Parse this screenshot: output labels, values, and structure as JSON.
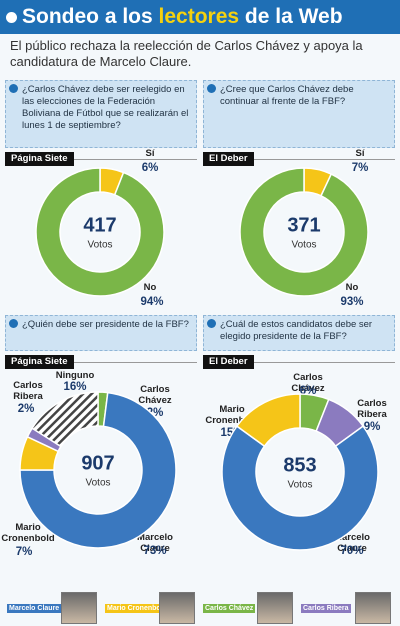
{
  "header": {
    "title_parts": [
      "Sondeo a los ",
      "lectores",
      " de la Web"
    ],
    "subtitle": "El público rechaza la reelección de Carlos Chávez y apoya la candidatura de Marcelo Claure."
  },
  "chart_data": [
    {
      "type": "donut",
      "question": "¿Carlos Chávez debe ser reelegido en las elecciones de la Federación Boliviana de Fútbol que se realizarán el lunes 1 de septiembre?",
      "source": "Página Siete",
      "total": 417,
      "total_label": "Votos",
      "categories": [
        "Sí",
        "No"
      ],
      "values": [
        6,
        94
      ],
      "value_labels": [
        "6%",
        "94%"
      ],
      "colors": [
        "#f5c518",
        "#7ab648"
      ],
      "hatched": [
        false,
        false
      ]
    },
    {
      "type": "donut",
      "question": "¿Cree que Carlos Chávez debe continuar al frente de la FBF?",
      "source": "El Deber",
      "total": 371,
      "total_label": "Votos",
      "categories": [
        "Sí",
        "No"
      ],
      "values": [
        7,
        93
      ],
      "value_labels": [
        "7%",
        "93%"
      ],
      "colors": [
        "#f5c518",
        "#7ab648"
      ],
      "hatched": [
        false,
        false
      ]
    },
    {
      "type": "donut",
      "question": "¿Quién debe ser presidente de la FBF?",
      "source": "Página Siete",
      "total": 907,
      "total_label": "Votos",
      "categories": [
        "Carlos Chávez",
        "Marcelo Claure",
        "Mario Cronenbold",
        "Carlos Ribera",
        "Ninguno"
      ],
      "values": [
        2,
        73,
        7,
        2,
        16
      ],
      "value_labels": [
        "2%",
        "73%",
        "7%",
        "2%",
        "16%"
      ],
      "colors": [
        "#7ab648",
        "#3a78bf",
        "#f5c518",
        "#8b7bbf",
        "#444444"
      ],
      "hatched": [
        false,
        false,
        false,
        false,
        true
      ]
    },
    {
      "type": "donut",
      "question": "¿Cuál de estos candidatos debe ser elegido presidente de la FBF?",
      "source": "El Deber",
      "total": 853,
      "total_label": "Votos",
      "categories": [
        "Carlos Chávez",
        "Carlos Ribera",
        "Marcelo Claure",
        "Mario Cronenbold"
      ],
      "values": [
        6,
        9,
        70,
        15
      ],
      "value_labels": [
        "6%",
        "9%",
        "70%",
        "15%"
      ],
      "colors": [
        "#7ab648",
        "#8b7bbf",
        "#3a78bf",
        "#f5c518"
      ],
      "hatched": [
        false,
        false,
        false,
        false
      ]
    }
  ],
  "legend": [
    {
      "name": "Marcelo Claure",
      "color": "#3a78bf"
    },
    {
      "name": "Mario Cronenbold",
      "color": "#f5c518"
    },
    {
      "name": "Carlos Chávez",
      "color": "#7ab648"
    },
    {
      "name": "Carlos Ribera",
      "color": "#8b7bbf"
    }
  ]
}
